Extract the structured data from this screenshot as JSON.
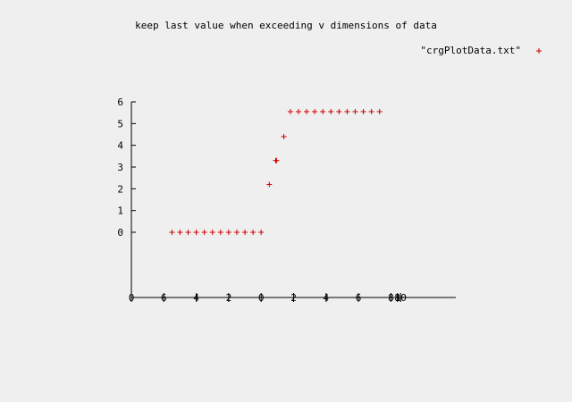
{
  "chart_data": {
    "type": "scatter",
    "title": "keep last value when exceeding v dimensions of data",
    "legend": {
      "label": "\"crgPlotData.txt\"",
      "placement": "top-right"
    },
    "xlim": [
      -10,
      10
    ],
    "ylim": [
      -3,
      6
    ],
    "x_tick_labels": [
      {
        "value": -10,
        "label": "0"
      },
      {
        "value": -8,
        "label": "6"
      },
      {
        "value": -6,
        "label": "4"
      },
      {
        "value": -4,
        "label": "2"
      },
      {
        "value": -2,
        "label": "0"
      },
      {
        "value": 0,
        "label": "2"
      },
      {
        "value": 2,
        "label": "4"
      },
      {
        "value": 4,
        "label": "6"
      },
      {
        "value": 6,
        "label": "8"
      },
      {
        "value": 6.4,
        "label": "8"
      },
      {
        "value": 6.6,
        "label": "10"
      }
    ],
    "y_ticks": [
      0,
      1,
      2,
      3,
      4,
      5,
      6
    ],
    "colors": {
      "marker": "#cc0000",
      "axis": "#000000",
      "background": "#efefef"
    },
    "series": [
      {
        "marker": "plus",
        "points": [
          {
            "x": -7.5,
            "y": 0
          },
          {
            "x": -7.0,
            "y": 0
          },
          {
            "x": -6.5,
            "y": 0
          },
          {
            "x": -6.0,
            "y": 0
          },
          {
            "x": -5.5,
            "y": 0
          },
          {
            "x": -5.0,
            "y": 0
          },
          {
            "x": -4.5,
            "y": 0
          },
          {
            "x": -4.0,
            "y": 0
          },
          {
            "x": -3.5,
            "y": 0
          },
          {
            "x": -3.0,
            "y": 0
          },
          {
            "x": -2.5,
            "y": 0
          },
          {
            "x": -2.0,
            "y": 0
          },
          {
            "x": -1.5,
            "y": 2.2
          },
          {
            "x": -1.1,
            "y": 3.3
          },
          {
            "x": -1.05,
            "y": 3.3
          },
          {
            "x": -0.6,
            "y": 4.4
          },
          {
            "x": -0.2,
            "y": 5.55
          },
          {
            "x": 0.3,
            "y": 5.55
          },
          {
            "x": 0.8,
            "y": 5.55
          },
          {
            "x": 1.3,
            "y": 5.55
          },
          {
            "x": 1.8,
            "y": 5.55
          },
          {
            "x": 2.3,
            "y": 5.55
          },
          {
            "x": 2.8,
            "y": 5.55
          },
          {
            "x": 3.3,
            "y": 5.55
          },
          {
            "x": 3.8,
            "y": 5.55
          },
          {
            "x": 4.3,
            "y": 5.55
          },
          {
            "x": 4.8,
            "y": 5.55
          },
          {
            "x": 5.3,
            "y": 5.55
          }
        ]
      }
    ]
  }
}
